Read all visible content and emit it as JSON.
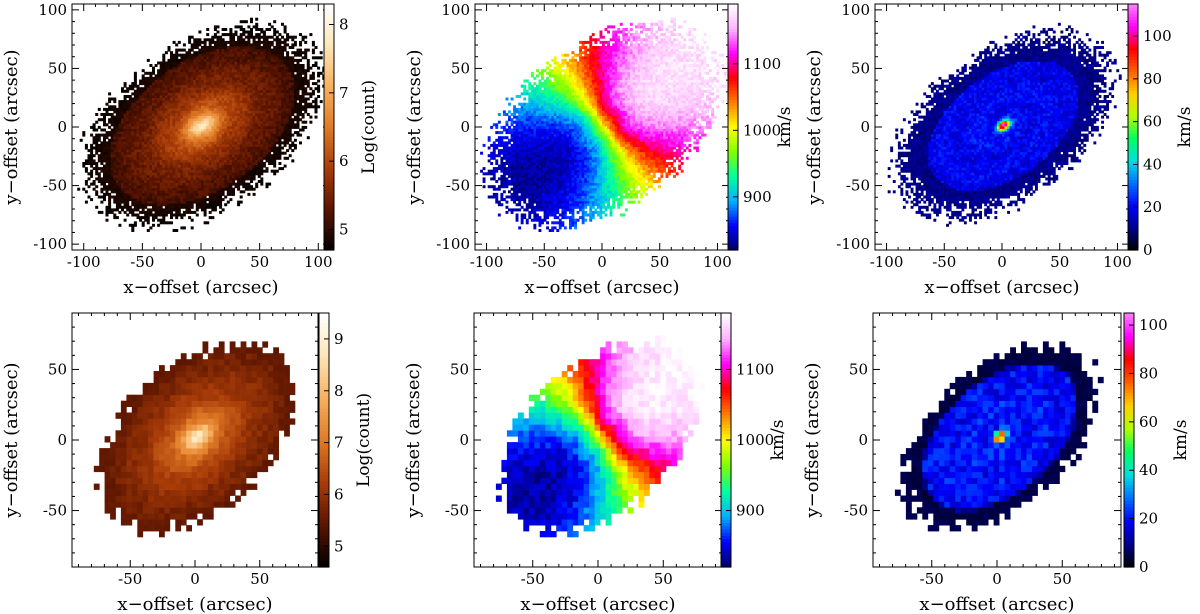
{
  "figure": {
    "colors": {
      "background": "#ffffff",
      "axis": "#000000",
      "heat_colormap": [
        "#000000",
        "#5a1400",
        "#a83c08",
        "#e07a26",
        "#f6b060",
        "#fde6b8",
        "#ffffff"
      ],
      "velocity_colormap": [
        "#000060",
        "#0000ff",
        "#00b0ff",
        "#00ffa0",
        "#80ff00",
        "#ffff00",
        "#ff8000",
        "#ff0000",
        "#ff00ff",
        "#ffb4ff",
        "#ffffff"
      ],
      "dispersion_colormap": [
        "#000000",
        "#00008a",
        "#0000ff",
        "#0070ff",
        "#00e0e0",
        "#00ff60",
        "#b0ff00",
        "#ffd000",
        "#ff6000",
        "#ff0000",
        "#ff00ff",
        "#ff80ff"
      ]
    }
  },
  "chart_data": [
    {
      "id": "intensity-fine",
      "type": "heatmap",
      "xlabel": "x−offset (arcsec)",
      "ylabel": "y−offset (arcsec)",
      "xlim": [
        -110,
        110
      ],
      "ylim": [
        -105,
        105
      ],
      "xticks": [
        -100,
        -50,
        0,
        50,
        100
      ],
      "yticks": [
        -100,
        -50,
        0,
        50,
        100
      ],
      "colorbar": {
        "label": "Log(count)",
        "range": [
          4.7,
          8.3
        ],
        "ticks": [
          5,
          6,
          7,
          8
        ],
        "colormap": "heat"
      },
      "map": {
        "kind": "intensity",
        "peak": 8.2,
        "floor": 4.8,
        "pa_deg": 35,
        "semi_major": 104,
        "axis_ratio": 0.62,
        "extent": 108
      }
    },
    {
      "id": "velocity-fine",
      "type": "heatmap",
      "xlabel": "x−offset (arcsec)",
      "ylabel": "y−offset (arcsec)",
      "xlim": [
        -110,
        110
      ],
      "ylim": [
        -105,
        105
      ],
      "xticks": [
        -100,
        -50,
        0,
        50,
        100
      ],
      "yticks": [
        -100,
        -50,
        0,
        50,
        100
      ],
      "colorbar": {
        "label": "km/s",
        "range": [
          820,
          1190
        ],
        "ticks": [
          900,
          1000,
          1100
        ],
        "colormap": "velocity"
      },
      "map": {
        "kind": "velocity",
        "systemic": 1005,
        "amplitude": 170,
        "pa_deg": 35,
        "semi_major": 104,
        "axis_ratio": 0.62,
        "extent": 108
      }
    },
    {
      "id": "dispersion-fine",
      "type": "heatmap",
      "xlabel": "x−offset (arcsec)",
      "ylabel": "y−offset (arcsec)",
      "xlim": [
        -110,
        110
      ],
      "ylim": [
        -105,
        105
      ],
      "xticks": [
        -100,
        -50,
        0,
        50,
        100
      ],
      "yticks": [
        -100,
        -50,
        0,
        50,
        100
      ],
      "colorbar": {
        "label": "km/s",
        "range": [
          0,
          115
        ],
        "ticks": [
          0,
          20,
          40,
          60,
          80,
          100
        ],
        "colormap": "dispersion"
      },
      "map": {
        "kind": "dispersion",
        "peak": 110,
        "base": 18,
        "pa_deg": 35,
        "semi_major": 98,
        "axis_ratio": 0.6,
        "extent": 106
      }
    },
    {
      "id": "intensity-binned",
      "type": "heatmap",
      "xlabel": "x−offset (arcsec)",
      "ylabel": "y−offset (arcsec)",
      "xlim": [
        -95,
        95
      ],
      "ylim": [
        -90,
        90
      ],
      "xticks": [
        -50,
        0,
        50
      ],
      "yticks": [
        -50,
        0,
        50
      ],
      "colorbar": {
        "label": "Log(count)",
        "range": [
          4.6,
          9.5
        ],
        "ticks": [
          5,
          6,
          7,
          8,
          9
        ],
        "colormap": "heat"
      },
      "map": {
        "kind": "intensity",
        "peak": 9.4,
        "floor": 5.2,
        "pa_deg": 37,
        "semi_major": 90,
        "axis_ratio": 0.62,
        "extent": 90
      }
    },
    {
      "id": "velocity-binned",
      "type": "heatmap",
      "xlabel": "x−offset (arcsec)",
      "ylabel": "y−offset (arcsec)",
      "xlim": [
        -95,
        95
      ],
      "ylim": [
        -90,
        90
      ],
      "xticks": [
        -50,
        0,
        50
      ],
      "yticks": [
        -50,
        0,
        50
      ],
      "colorbar": {
        "label": "km/s",
        "range": [
          820,
          1180
        ],
        "ticks": [
          900,
          1000,
          1100
        ],
        "colormap": "velocity"
      },
      "map": {
        "kind": "velocity",
        "systemic": 1005,
        "amplitude": 170,
        "pa_deg": 37,
        "semi_major": 90,
        "axis_ratio": 0.62,
        "extent": 90
      }
    },
    {
      "id": "dispersion-binned",
      "type": "heatmap",
      "xlabel": "x−offset (arcsec)",
      "ylabel": "y−offset (arcsec)",
      "xlim": [
        -95,
        95
      ],
      "ylim": [
        -90,
        90
      ],
      "xticks": [
        -50,
        0,
        50
      ],
      "yticks": [
        -50,
        0,
        50
      ],
      "colorbar": {
        "label": "km/s",
        "range": [
          0,
          105
        ],
        "ticks": [
          0,
          20,
          40,
          60,
          80,
          100
        ],
        "colormap": "dispersion"
      },
      "map": {
        "kind": "dispersion",
        "peak": 100,
        "base": 18,
        "pa_deg": 37,
        "semi_major": 88,
        "axis_ratio": 0.6,
        "extent": 90
      }
    }
  ]
}
